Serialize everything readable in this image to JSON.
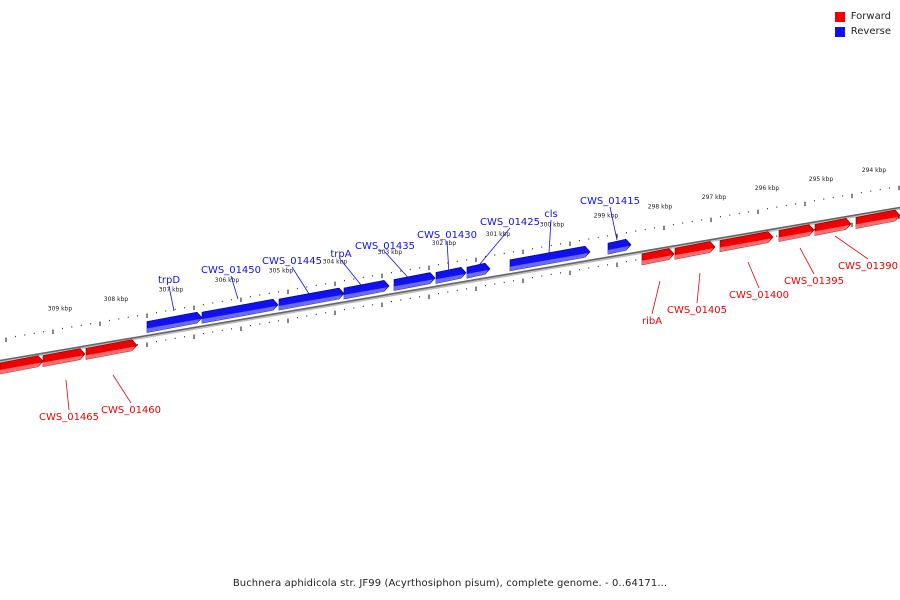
{
  "legend": {
    "forward_label": "Forward",
    "reverse_label": "Reverse",
    "forward_color": "#f00000",
    "reverse_color": "#1010f0"
  },
  "caption": "Buchnera aphidicola str. JF99 (Acyrthosiphon pisum), complete genome. - 0..64171...",
  "ticks_top": [
    "309 kbp",
    "308 kbp",
    "307 kbp",
    "306 kbp",
    "305 kbp",
    "304 kbp",
    "303 kbp",
    "302 kbp",
    "301 kbp",
    "300 kbp",
    "299 kbp",
    "298 kbp",
    "297 kbp",
    "296 kbp",
    "295 kbp",
    "294 kbp"
  ],
  "genes_reverse": [
    {
      "label": "trpD"
    },
    {
      "label": "CWS_01450"
    },
    {
      "label": "CWS_01445"
    },
    {
      "label": "trpA"
    },
    {
      "label": "CWS_01435"
    },
    {
      "label": "CWS_01430"
    },
    {
      "label": "CWS_01425"
    },
    {
      "label": "cls"
    },
    {
      "label": "CWS_01415"
    }
  ],
  "genes_forward": [
    {
      "label": "CWS_01465"
    },
    {
      "label": "CWS_01460"
    },
    {
      "label": "ribA"
    },
    {
      "label": "CWS_01405"
    },
    {
      "label": "CWS_01400"
    },
    {
      "label": "CWS_01395"
    },
    {
      "label": "CWS_01390"
    }
  ]
}
